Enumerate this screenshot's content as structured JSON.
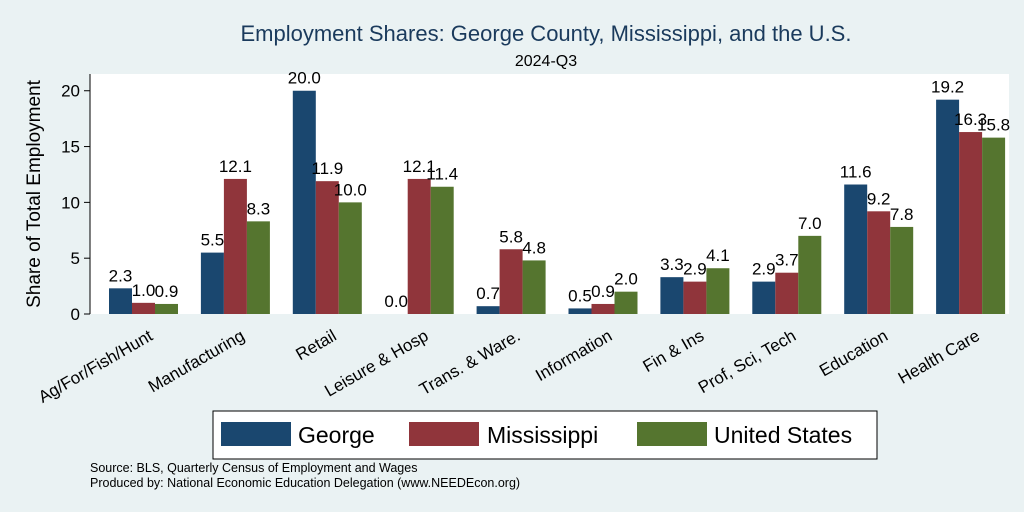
{
  "chart_data": {
    "type": "bar",
    "title": "Employment Shares: George County, Mississippi, and the U.S.",
    "subtitle": "2024-Q3",
    "ylabel": "Share of Total Employment",
    "ylim": [
      0,
      21.5
    ],
    "yticks": [
      0,
      5,
      10,
      15,
      20
    ],
    "grid": false,
    "legend_position": "bottom",
    "categories": [
      "Ag/For/Fish/Hunt",
      "Manufacturing",
      "Retail",
      "Leisure & Hosp",
      "Trans. & Ware.",
      "Information",
      "Fin & Ins",
      "Prof, Sci, Tech",
      "Education",
      "Health Care"
    ],
    "series": [
      {
        "name": "George",
        "color": "#1a476f",
        "values": [
          2.3,
          5.5,
          20.0,
          0.0,
          0.7,
          0.5,
          3.3,
          2.9,
          11.6,
          19.2
        ]
      },
      {
        "name": "Mississippi",
        "color": "#90353b",
        "values": [
          1.0,
          12.1,
          11.9,
          12.1,
          5.8,
          0.9,
          2.9,
          3.7,
          9.2,
          16.3
        ]
      },
      {
        "name": "United States",
        "color": "#55752f",
        "values": [
          0.9,
          8.3,
          10.0,
          11.4,
          4.8,
          2.0,
          4.1,
          7.0,
          7.8,
          15.8
        ]
      }
    ]
  },
  "notes": {
    "source": "Source: BLS, Quarterly Census of Employment and Wages",
    "produced_by": "Produced by: National Economic Education Delegation (www.NEEDEcon.org)"
  },
  "colors": {
    "background": "#eaf2f3",
    "plot_background": "#ffffff",
    "title": "#1a3a5c"
  }
}
